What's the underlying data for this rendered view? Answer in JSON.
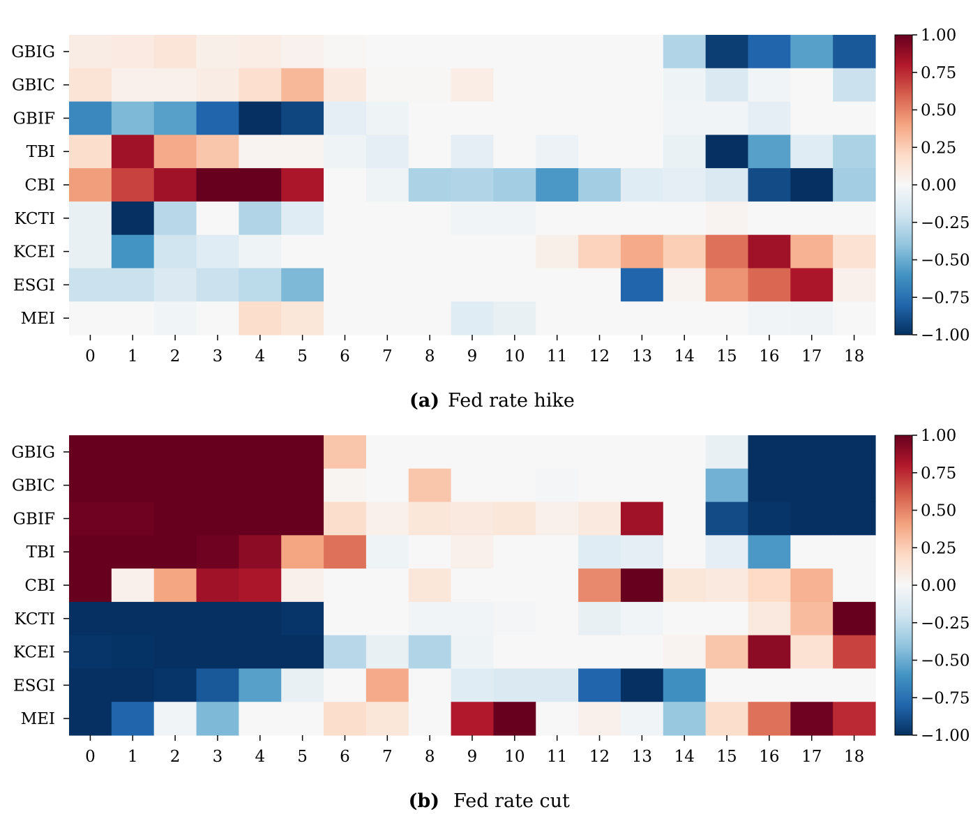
{
  "chart_data": [
    {
      "type": "heatmap",
      "label_letter": "(a)",
      "caption": "Fed rate hike",
      "rows": [
        "GBIG",
        "GBIC",
        "GBIF",
        "TBI",
        "CBI",
        "KCTI",
        "KCEI",
        "ESGI",
        "MEI"
      ],
      "columns": [
        "0",
        "1",
        "2",
        "3",
        "4",
        "5",
        "6",
        "7",
        "8",
        "9",
        "10",
        "11",
        "12",
        "13",
        "14",
        "15",
        "16",
        "17",
        "18"
      ],
      "values": [
        [
          0.08,
          0.09,
          0.13,
          0.06,
          0.07,
          0.04,
          0.01,
          0.0,
          0.0,
          0.0,
          0.0,
          0.0,
          0.0,
          0.0,
          -0.3,
          -0.95,
          -0.8,
          -0.55,
          -0.85
        ],
        [
          0.14,
          0.05,
          0.05,
          0.08,
          0.17,
          0.33,
          0.1,
          0.01,
          0.01,
          0.07,
          0.0,
          0.0,
          0.0,
          0.0,
          -0.05,
          -0.15,
          -0.03,
          0.0,
          -0.22
        ],
        [
          -0.65,
          -0.45,
          -0.55,
          -0.8,
          -1.0,
          -0.92,
          -0.1,
          -0.05,
          0.0,
          0.0,
          0.0,
          0.0,
          0.0,
          0.0,
          -0.03,
          -0.03,
          -0.1,
          0.0,
          0.0
        ],
        [
          0.18,
          0.85,
          0.38,
          0.28,
          0.03,
          0.03,
          -0.05,
          -0.1,
          0.0,
          -0.1,
          0.0,
          -0.06,
          0.0,
          0.0,
          -0.07,
          -1.0,
          -0.55,
          -0.12,
          -0.32
        ],
        [
          0.42,
          0.68,
          0.85,
          1.0,
          1.0,
          0.82,
          0.0,
          -0.05,
          -0.32,
          -0.3,
          -0.35,
          -0.58,
          -0.35,
          -0.12,
          -0.1,
          -0.15,
          -0.9,
          -1.0,
          -0.35
        ],
        [
          -0.08,
          -1.0,
          -0.28,
          0.0,
          -0.3,
          -0.12,
          0.0,
          0.0,
          0.0,
          -0.03,
          -0.03,
          0.0,
          0.0,
          0.0,
          0.0,
          0.03,
          0.0,
          0.0,
          0.0
        ],
        [
          -0.08,
          -0.6,
          -0.2,
          -0.12,
          -0.05,
          0.0,
          0.0,
          0.0,
          0.0,
          0.0,
          0.0,
          0.06,
          0.23,
          0.38,
          0.25,
          0.55,
          0.85,
          0.35,
          0.15
        ],
        [
          -0.22,
          -0.22,
          -0.15,
          -0.22,
          -0.27,
          -0.45,
          0.0,
          0.0,
          0.0,
          0.0,
          0.0,
          0.0,
          0.0,
          -0.8,
          0.03,
          0.45,
          0.58,
          0.82,
          0.05
        ],
        [
          0.0,
          0.0,
          -0.03,
          0.0,
          0.18,
          0.12,
          0.0,
          0.0,
          0.0,
          -0.12,
          -0.08,
          0.0,
          0.0,
          0.0,
          0.0,
          0.0,
          -0.03,
          -0.04,
          0.0
        ]
      ],
      "colorbar": {
        "min": -1.0,
        "max": 1.0,
        "ticks": [
          "1.00",
          "0.75",
          "0.50",
          "0.25",
          "0.00",
          "−0.25",
          "−0.50",
          "−0.75",
          "−1.00"
        ],
        "colormap": "RdBu_r"
      }
    },
    {
      "type": "heatmap",
      "label_letter": "(b)",
      "caption": "Fed rate cut",
      "rows": [
        "GBIG",
        "GBIC",
        "GBIF",
        "TBI",
        "CBI",
        "KCTI",
        "KCEI",
        "ESGI",
        "MEI"
      ],
      "columns": [
        "0",
        "1",
        "2",
        "3",
        "4",
        "5",
        "6",
        "7",
        "8",
        "9",
        "10",
        "11",
        "12",
        "13",
        "14",
        "15",
        "16",
        "17",
        "18"
      ],
      "values": [
        [
          1.0,
          1.0,
          1.0,
          1.0,
          1.0,
          1.0,
          0.28,
          0.0,
          0.0,
          0.0,
          0.0,
          0.0,
          0.0,
          0.0,
          0.0,
          -0.08,
          -1.0,
          -1.0,
          -1.0
        ],
        [
          1.0,
          1.0,
          1.0,
          1.0,
          1.0,
          1.0,
          0.02,
          0.0,
          0.28,
          0.0,
          0.0,
          -0.02,
          0.0,
          0.0,
          0.0,
          -0.48,
          -1.0,
          -1.0,
          -1.0
        ],
        [
          0.98,
          0.98,
          1.0,
          1.0,
          1.0,
          1.0,
          0.18,
          0.05,
          0.12,
          0.1,
          0.12,
          0.05,
          0.1,
          0.85,
          0.0,
          -0.9,
          -0.98,
          -1.0,
          -1.0
        ],
        [
          1.0,
          1.0,
          1.0,
          0.98,
          0.9,
          0.4,
          0.55,
          -0.05,
          0.0,
          0.05,
          0.0,
          0.0,
          -0.12,
          -0.1,
          0.0,
          -0.1,
          -0.58,
          0.0,
          0.0
        ],
        [
          1.0,
          0.05,
          0.4,
          0.85,
          0.82,
          0.05,
          0.0,
          0.0,
          0.12,
          0.0,
          0.0,
          0.0,
          0.48,
          1.0,
          0.12,
          0.1,
          0.2,
          0.35,
          0.0
        ],
        [
          -1.0,
          -1.0,
          -1.0,
          -1.0,
          -1.0,
          -0.98,
          0.0,
          0.0,
          -0.03,
          -0.03,
          -0.02,
          0.0,
          -0.08,
          -0.03,
          0.0,
          0.0,
          0.1,
          0.32,
          1.0
        ],
        [
          -0.98,
          -0.99,
          -1.0,
          -1.0,
          -1.0,
          -1.0,
          -0.28,
          -0.08,
          -0.3,
          -0.05,
          0.0,
          0.0,
          0.0,
          0.0,
          0.03,
          0.28,
          0.9,
          0.15,
          0.68
        ],
        [
          -1.0,
          -1.0,
          -0.98,
          -0.85,
          -0.55,
          -0.08,
          0.0,
          0.38,
          0.0,
          -0.12,
          -0.15,
          -0.15,
          -0.8,
          -1.0,
          -0.62,
          0.0,
          0.0,
          0.0,
          0.0
        ],
        [
          -1.0,
          -0.8,
          -0.03,
          -0.45,
          0.0,
          0.0,
          0.18,
          0.12,
          0.0,
          0.8,
          1.0,
          0.0,
          0.05,
          -0.03,
          -0.38,
          0.18,
          0.55,
          0.98,
          0.75
        ]
      ],
      "colorbar": {
        "min": -1.0,
        "max": 1.0,
        "ticks": [
          "1.00",
          "0.75",
          "0.50",
          "0.25",
          "0.00",
          "−0.25",
          "−0.50",
          "−0.75",
          "−1.00"
        ],
        "colormap": "RdBu_r"
      }
    }
  ]
}
